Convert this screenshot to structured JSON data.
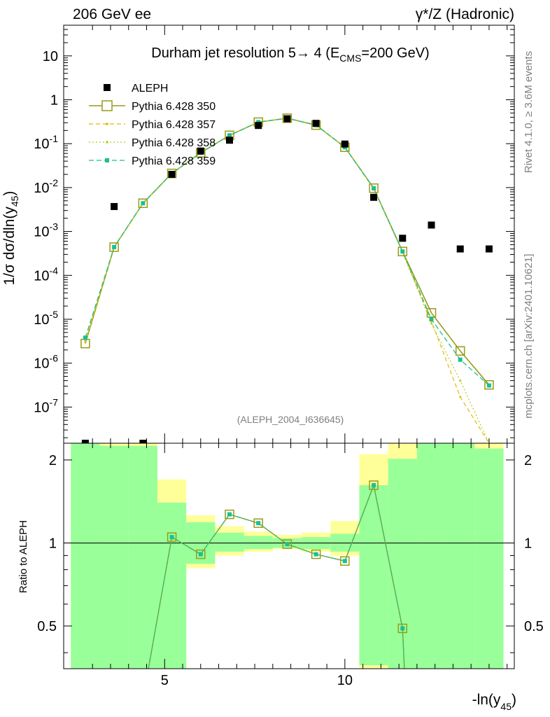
{
  "header": {
    "left": "206 GeV ee",
    "right": "γ*/Z (Hadronic)"
  },
  "side_text": {
    "top": "Rivet 4.1.0, ≥ 3.6M events",
    "bottom": "mcplots.cern.ch [arXiv:2401.10621]"
  },
  "chart_data": {
    "type": "line",
    "title": "Durham jet resolution 5→ 4 (E_CMS=200 GeV)",
    "ylabel": "1/σ dσ/dln(y_45)",
    "xlabel": "-ln(y_45)",
    "ratio_ylabel": "Ratio to ALEPH",
    "watermark": "(ALEPH_2004_I636645)",
    "x_ticks": [
      "5",
      "10"
    ],
    "y_ticks": [
      "10^-7",
      "10^-6",
      "10^-5",
      "10^-4",
      "10^-3",
      "10^-2",
      "10^-1",
      "1",
      "10"
    ],
    "ratio_ticks": [
      "0.5",
      "1",
      "2"
    ],
    "xlim": [
      2.2,
      14.7
    ],
    "ylim": [
      1.5e-08,
      50
    ],
    "ratio_ylim": [
      0.35,
      2.3
    ],
    "ratio_scale": "log",
    "bin_edges": [
      2.4,
      3.2,
      4.0,
      4.8,
      5.6,
      6.4,
      7.2,
      8.0,
      8.8,
      9.6,
      10.4,
      11.2,
      12.0,
      12.8,
      13.6,
      14.4
    ],
    "legend_position": "top-left",
    "series": [
      {
        "name": "ALEPH",
        "x": [
          2.8,
          3.6,
          4.4,
          5.2,
          6.0,
          6.8,
          7.6,
          8.4,
          9.2,
          10.0,
          10.8,
          11.6,
          12.4,
          13.2,
          14.0
        ],
        "y": [
          1e-08,
          0.0037,
          1e-08,
          0.02,
          0.068,
          0.12,
          0.26,
          0.37,
          0.29,
          0.098,
          0.006,
          0.0007,
          0.0014,
          0.0004,
          0.0004
        ]
      },
      {
        "name": "Pythia 6.428 350",
        "x": [
          2.8,
          3.6,
          4.4,
          5.2,
          6.0,
          6.8,
          7.6,
          8.4,
          9.2,
          10.0,
          10.8,
          11.6,
          12.4,
          13.2,
          14.0
        ],
        "y": [
          2.8e-06,
          0.00044,
          0.0044,
          0.021,
          0.062,
          0.155,
          0.31,
          0.38,
          0.265,
          0.083,
          0.0097,
          0.00035,
          1.4e-05,
          1.9e-06,
          3.2e-07
        ]
      },
      {
        "name": "Pythia 6.428 357",
        "x": [
          2.8,
          3.6,
          4.4,
          5.2,
          6.0,
          6.8,
          7.6,
          8.4,
          9.2,
          10.0,
          10.8,
          11.6,
          12.4,
          13.2,
          14.0
        ],
        "y": [
          3e-06,
          0.00044,
          0.0044,
          0.021,
          0.062,
          0.155,
          0.31,
          0.38,
          0.265,
          0.083,
          0.0095,
          0.00034,
          9e-06,
          1.7e-07,
          1e-08
        ]
      },
      {
        "name": "Pythia 6.428 358",
        "x": [
          2.8,
          3.6,
          4.4,
          5.2,
          6.0,
          6.8,
          7.6,
          8.4,
          9.2,
          10.0,
          10.8,
          11.6,
          12.4,
          13.2,
          14.0
        ],
        "y": [
          3.3e-06,
          0.00044,
          0.0044,
          0.021,
          0.062,
          0.155,
          0.31,
          0.38,
          0.265,
          0.083,
          0.0094,
          0.00033,
          8e-06,
          4e-07,
          1e-08
        ]
      },
      {
        "name": "Pythia 6.428 359",
        "x": [
          2.8,
          3.6,
          4.4,
          5.2,
          6.0,
          6.8,
          7.6,
          8.4,
          9.2,
          10.0,
          10.8,
          11.6,
          12.4,
          13.2,
          14.0
        ],
        "y": [
          3.8e-06,
          0.00044,
          0.0044,
          0.021,
          0.062,
          0.155,
          0.31,
          0.38,
          0.265,
          0.083,
          0.0096,
          0.00035,
          1e-05,
          1.2e-06,
          3.1e-07
        ]
      }
    ],
    "ratio": {
      "x": [
        5.2,
        6.0,
        6.8,
        7.6,
        8.4,
        9.2,
        10.0,
        10.8,
        11.6
      ],
      "y": [
        1.05,
        0.91,
        1.27,
        1.18,
        0.99,
        0.91,
        0.86,
        1.62,
        0.49
      ]
    },
    "bands": {
      "yellow": [
        {
          "lo": 0.3,
          "hi": 2.3
        },
        {
          "lo": 0.3,
          "hi": 2.3
        },
        {
          "lo": 0.3,
          "hi": 2.3
        },
        {
          "lo": 0.3,
          "hi": 1.7
        },
        {
          "lo": 0.81,
          "hi": 1.26
        },
        {
          "lo": 0.9,
          "hi": 1.15
        },
        {
          "lo": 0.93,
          "hi": 1.1
        },
        {
          "lo": 0.95,
          "hi": 1.07
        },
        {
          "lo": 0.93,
          "hi": 1.09
        },
        {
          "lo": 0.9,
          "hi": 1.2
        },
        {
          "lo": 0.3,
          "hi": 2.1
        },
        {
          "lo": 0.3,
          "hi": 2.3
        },
        {
          "lo": 0.3,
          "hi": 2.3
        },
        {
          "lo": 0.3,
          "hi": 2.3
        },
        {
          "lo": 0.3,
          "hi": 2.3
        }
      ],
      "green": [
        {
          "lo": 0.3,
          "hi": 2.3
        },
        {
          "lo": 0.3,
          "hi": 2.25
        },
        {
          "lo": 0.3,
          "hi": 2.25
        },
        {
          "lo": 0.3,
          "hi": 1.4
        },
        {
          "lo": 0.84,
          "hi": 1.19
        },
        {
          "lo": 0.93,
          "hi": 1.09
        },
        {
          "lo": 0.95,
          "hi": 1.06
        },
        {
          "lo": 0.96,
          "hi": 1.04
        },
        {
          "lo": 0.95,
          "hi": 1.05
        },
        {
          "lo": 0.93,
          "hi": 1.08
        },
        {
          "lo": 0.36,
          "hi": 1.62
        },
        {
          "lo": 0.3,
          "hi": 2.02
        },
        {
          "lo": 0.3,
          "hi": 2.3
        },
        {
          "lo": 0.3,
          "hi": 2.3
        },
        {
          "lo": 0.3,
          "hi": 2.2
        }
      ]
    },
    "colors": {
      "data": "#000000",
      "s350": "#999a1b",
      "s357": "#e6b800",
      "s358": "#b8c81e",
      "s359": "#18c090",
      "band_yellow": "#ffff99",
      "band_green": "#99ff99"
    }
  }
}
